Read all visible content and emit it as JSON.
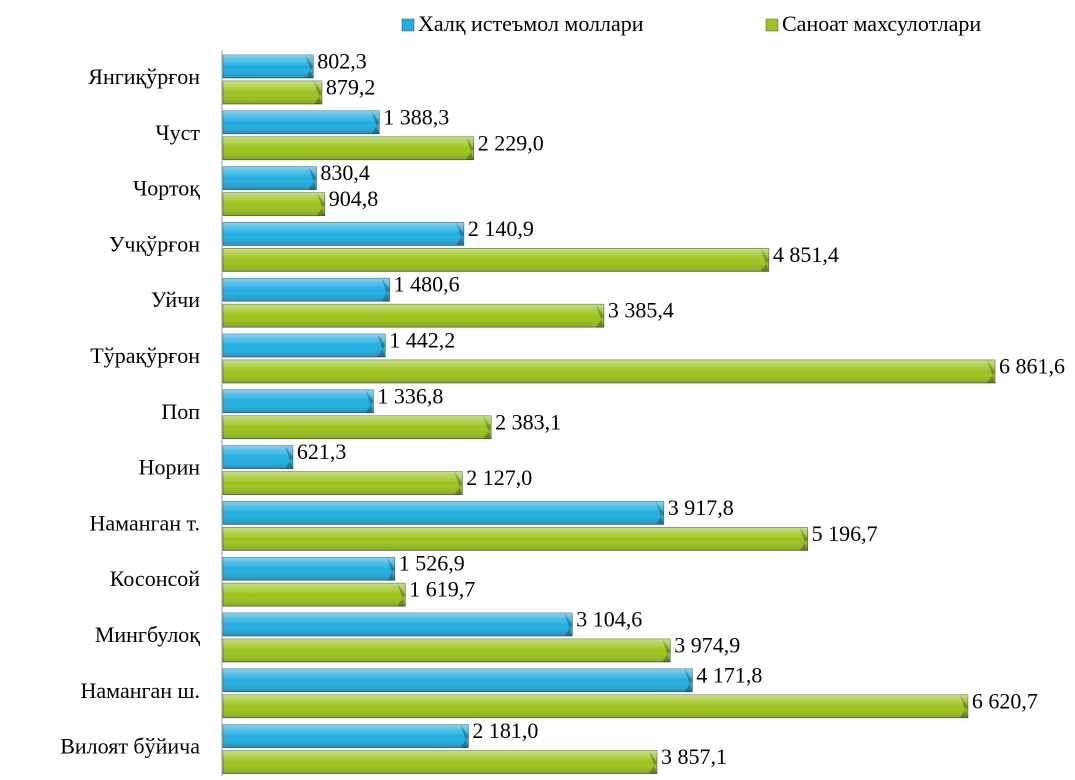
{
  "chart_data": {
    "type": "hbar",
    "categories": [
      "Янгиқўрғон",
      "Чуст",
      "Чортоқ",
      "Учқўрғон",
      "Уйчи",
      "Тўрақўрғон",
      "Поп",
      "Норин",
      "Наманган т.",
      "Косонсой",
      "Мингбулоқ",
      "Наманган ш.",
      "Вилоят бўйича"
    ],
    "series": [
      {
        "name": "Халқ истеъмол моллари",
        "color": "#22aee0",
        "values": [
          802.3,
          1388.3,
          830.4,
          2140.9,
          1480.6,
          1442.2,
          1336.8,
          621.3,
          3917.8,
          1526.9,
          3104.6,
          4171.8,
          2181.0
        ],
        "value_labels": [
          "802,3",
          "1 388,3",
          "830,4",
          "2 140,9",
          "1 480,6",
          "1 442,2",
          "1 336,8",
          "621,3",
          "3 917,8",
          "1 526,9",
          "3 104,6",
          "4 171,8",
          "2 181,0"
        ]
      },
      {
        "name": "Саноат махсулотлари",
        "color": "#9cc41e",
        "values": [
          879.2,
          2229.0,
          904.8,
          4851.4,
          3385.4,
          6861.6,
          2383.1,
          2127.0,
          5196.7,
          1619.7,
          3974.9,
          6620.7,
          3857.1
        ],
        "value_labels": [
          "879,2",
          "2 229,0",
          "904,8",
          "4 851,4",
          "3 385,4",
          "6 861,6",
          "2 383,1",
          "2 127,0",
          "5 196,7",
          "1 619,7",
          "3 974,9",
          "6 620,7",
          "3 857,1"
        ]
      }
    ],
    "legend": "top"
  }
}
